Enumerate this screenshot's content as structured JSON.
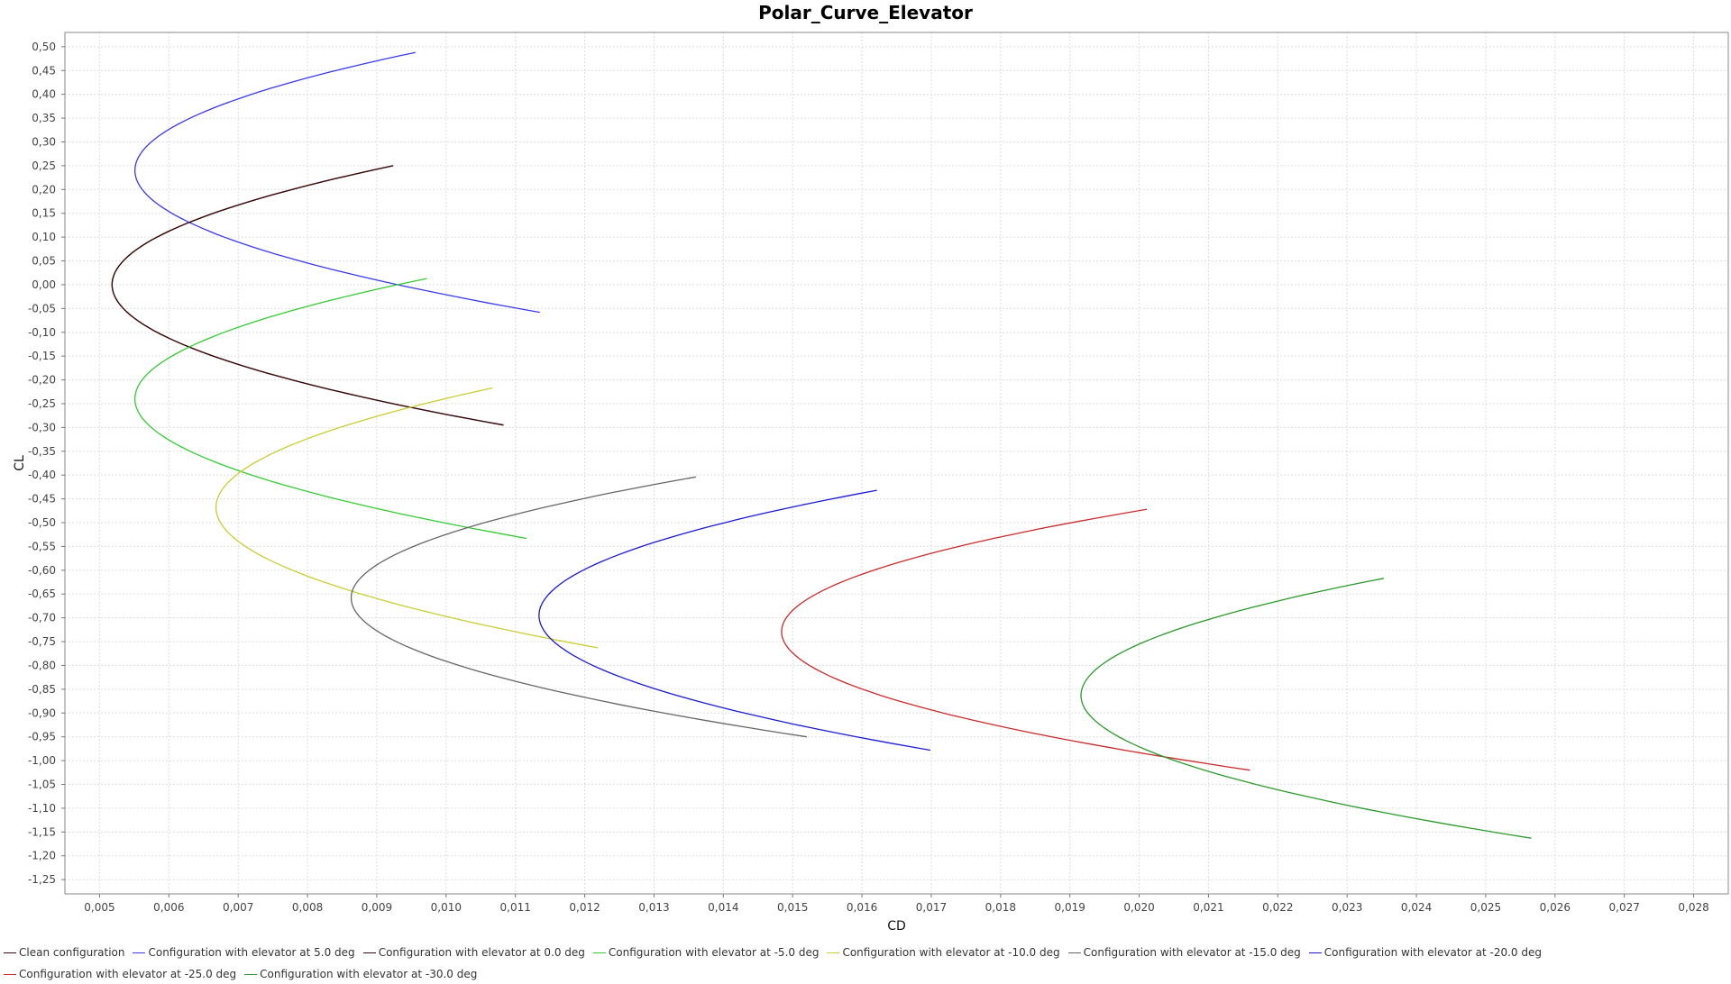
{
  "chart_data": {
    "type": "line",
    "title": "Polar_Curve_Elevator",
    "xlabel": "CD",
    "ylabel": "CL",
    "xlim": [
      0.0045,
      0.0285
    ],
    "ylim": [
      -1.28,
      0.53
    ],
    "xticks": [
      "0,005",
      "0,006",
      "0,007",
      "0,008",
      "0,009",
      "0,010",
      "0,011",
      "0,012",
      "0,013",
      "0,014",
      "0,015",
      "0,016",
      "0,017",
      "0,018",
      "0,019",
      "0,020",
      "0,021",
      "0,022",
      "0,023",
      "0,024",
      "0,025",
      "0,026",
      "0,027",
      "0,028"
    ],
    "yticks": [
      "0,50",
      "0,45",
      "0,40",
      "0,35",
      "0,30",
      "0,25",
      "0,20",
      "0,15",
      "0,10",
      "0,05",
      "0,00",
      "-0,05",
      "-0,10",
      "-0,15",
      "-0,20",
      "-0,25",
      "-0,30",
      "-0,35",
      "-0,40",
      "-0,45",
      "-0,50",
      "-0,55",
      "-0,60",
      "-0,65",
      "-0,70",
      "-0,75",
      "-0,80",
      "-0,85",
      "-0,90",
      "-0,95",
      "-1,00",
      "-1,05",
      "-1,10",
      "-1,15",
      "-1,20",
      "-1,25"
    ],
    "grid": true,
    "legend_position": "bottom",
    "series": [
      {
        "name": "Clean configuration",
        "color": "#3a0a0a",
        "cd_min": 0.00518,
        "cl_vertex": 0.0,
        "k": 0.0649,
        "cl_range": [
          -0.295,
          0.25
        ]
      },
      {
        "name": "Configuration with elevator at 5.0 deg",
        "color": "#3a3aee",
        "cd_min": 0.00551,
        "cl_vertex": 0.24,
        "k": 0.0658,
        "cl_range": [
          -0.058,
          0.488
        ]
      },
      {
        "name": "Configuration with elevator at 0.0 deg",
        "color": "#3a0a0a",
        "cd_min": 0.00518,
        "cl_vertex": 0.0,
        "k": 0.0649,
        "cl_range": [
          -0.295,
          0.25
        ]
      },
      {
        "name": "Configuration with elevator at -5.0 deg",
        "color": "#33cc33",
        "cd_min": 0.00551,
        "cl_vertex": -0.24,
        "k": 0.0658,
        "cl_range": [
          -0.533,
          0.013
        ]
      },
      {
        "name": "Configuration with elevator at -10.0 deg",
        "color": "#cccc33",
        "cd_min": 0.00668,
        "cl_vertex": -0.468,
        "k": 0.0633,
        "cl_range": [
          -0.763,
          -0.217
        ]
      },
      {
        "name": "Configuration with elevator at -15.0 deg",
        "color": "#666666",
        "cd_min": 0.00863,
        "cl_vertex": -0.658,
        "k": 0.0771,
        "cl_range": [
          -0.95,
          -0.404
        ]
      },
      {
        "name": "Configuration with elevator at -20.0 deg",
        "color": "#1a1ad4",
        "cd_min": 0.01134,
        "cl_vertex": -0.695,
        "k": 0.0705,
        "cl_range": [
          -0.978,
          -0.432
        ]
      },
      {
        "name": "Configuration with elevator at -25.0 deg",
        "color": "#cc2a2a",
        "cd_min": 0.01484,
        "cl_vertex": -0.729,
        "k": 0.0798,
        "cl_range": [
          -1.02,
          -0.472
        ]
      },
      {
        "name": "Configuration with elevator at -30.0 deg",
        "color": "#2a9a2a",
        "cd_min": 0.01916,
        "cl_vertex": -0.863,
        "k": 0.0722,
        "cl_range": [
          -1.163,
          -0.617
        ]
      }
    ]
  }
}
